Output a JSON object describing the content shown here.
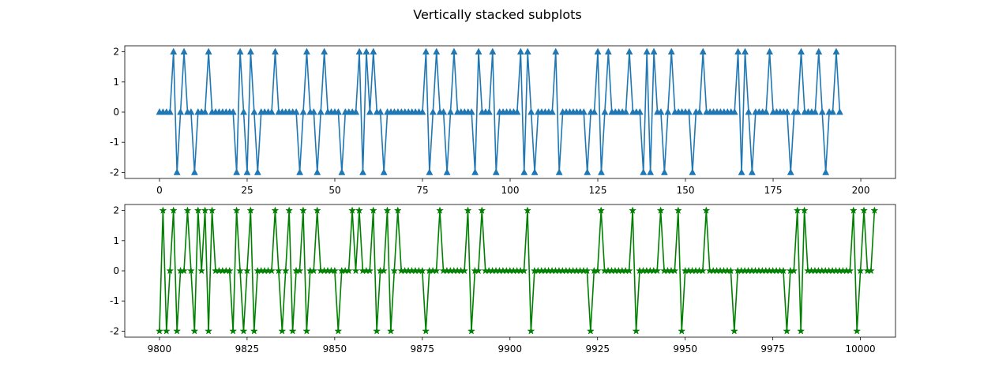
{
  "figure": {
    "title": "Vertically stacked subplots"
  },
  "chart_data": [
    {
      "type": "line",
      "title": "",
      "xlabel": "",
      "ylabel": "",
      "xlim": [
        -9.9,
        209.9
      ],
      "ylim": [
        -2.2,
        2.2
      ],
      "xticks": [
        0,
        25,
        50,
        75,
        100,
        125,
        150,
        175,
        200
      ],
      "yticks": [
        -2,
        -1,
        0,
        1,
        2
      ],
      "grid": false,
      "marker": "triangle-up",
      "color": "#1f77b4",
      "x_start": 0,
      "y": [
        0,
        0,
        0,
        0,
        2,
        -2,
        0,
        2,
        0,
        0,
        -2,
        0,
        0,
        0,
        2,
        0,
        0,
        0,
        0,
        0,
        0,
        0,
        -2,
        2,
        0,
        -2,
        2,
        0,
        -2,
        0,
        0,
        0,
        0,
        2,
        0,
        0,
        0,
        0,
        0,
        0,
        -2,
        0,
        2,
        0,
        0,
        -2,
        0,
        2,
        0,
        0,
        0,
        0,
        -2,
        0,
        0,
        0,
        0,
        2,
        -2,
        2,
        0,
        2,
        0,
        0,
        -2,
        0,
        0,
        0,
        0,
        0,
        0,
        0,
        0,
        0,
        0,
        0,
        2,
        -2,
        0,
        2,
        0,
        0,
        -2,
        0,
        2,
        0,
        0,
        0,
        0,
        0,
        -2,
        2,
        0,
        0,
        0,
        2,
        -2,
        0,
        0,
        0,
        0,
        0,
        0,
        2,
        -2,
        2,
        0,
        -2,
        0,
        0,
        0,
        0,
        0,
        2,
        -2,
        0,
        0,
        0,
        0,
        0,
        0,
        0,
        -2,
        0,
        0,
        2,
        -2,
        0,
        2,
        0,
        0,
        0,
        0,
        0,
        2,
        0,
        0,
        0,
        -2,
        2,
        -2,
        2,
        0,
        0,
        -2,
        0,
        2,
        0,
        0,
        0,
        0,
        0,
        -2,
        0,
        0,
        2,
        0,
        0,
        0,
        0,
        0,
        0,
        0,
        0,
        0,
        2,
        -2,
        2,
        0,
        -2,
        0,
        0,
        0,
        0,
        2,
        0,
        0,
        0,
        0,
        0,
        -2,
        0,
        0,
        2,
        0,
        0,
        0,
        0,
        2,
        0,
        -2,
        0,
        0,
        2,
        0
      ]
    },
    {
      "type": "line",
      "title": "",
      "xlabel": "",
      "ylabel": "",
      "xlim": [
        9790.1,
        10010.0
      ],
      "ylim": [
        -2.2,
        2.2
      ],
      "xticks": [
        9800,
        9825,
        9850,
        9875,
        9900,
        9925,
        9950,
        9975,
        10000
      ],
      "yticks": [
        -2,
        -1,
        0,
        1,
        2
      ],
      "grid": false,
      "marker": "star",
      "color": "#008000",
      "x_start": 9800,
      "y": [
        -2,
        2,
        -2,
        0,
        2,
        -2,
        0,
        0,
        2,
        0,
        -2,
        2,
        0,
        2,
        -2,
        2,
        0,
        0,
        0,
        0,
        0,
        -2,
        2,
        0,
        -2,
        0,
        2,
        -2,
        0,
        0,
        0,
        0,
        0,
        2,
        0,
        -2,
        0,
        2,
        -2,
        0,
        0,
        2,
        -2,
        0,
        0,
        2,
        0,
        0,
        0,
        0,
        0,
        -2,
        0,
        0,
        0,
        2,
        0,
        2,
        0,
        0,
        0,
        2,
        -2,
        0,
        0,
        2,
        -2,
        0,
        2,
        0,
        0,
        0,
        0,
        0,
        0,
        0,
        -2,
        0,
        0,
        0,
        2,
        0,
        0,
        0,
        0,
        0,
        0,
        0,
        2,
        -2,
        0,
        0,
        2,
        0,
        0,
        0,
        0,
        0,
        0,
        0,
        0,
        0,
        0,
        0,
        0,
        2,
        -2,
        0,
        0,
        0,
        0,
        0,
        0,
        0,
        0,
        0,
        0,
        0,
        0,
        0,
        0,
        0,
        0,
        -2,
        0,
        0,
        2,
        0,
        0,
        0,
        0,
        0,
        0,
        0,
        0,
        2,
        -2,
        0,
        0,
        0,
        0,
        0,
        0,
        2,
        0,
        0,
        0,
        0,
        2,
        -2,
        0,
        0,
        0,
        0,
        0,
        0,
        2,
        0,
        0,
        0,
        0,
        0,
        0,
        0,
        -2,
        0,
        0,
        0,
        0,
        0,
        0,
        0,
        0,
        0,
        0,
        0,
        0,
        0,
        0,
        -2,
        0,
        0,
        2,
        -2,
        2,
        0,
        0,
        0,
        0,
        0,
        0,
        0,
        0,
        0,
        0,
        0,
        0,
        0,
        2,
        -2,
        0,
        2,
        0,
        0,
        2
      ]
    }
  ]
}
